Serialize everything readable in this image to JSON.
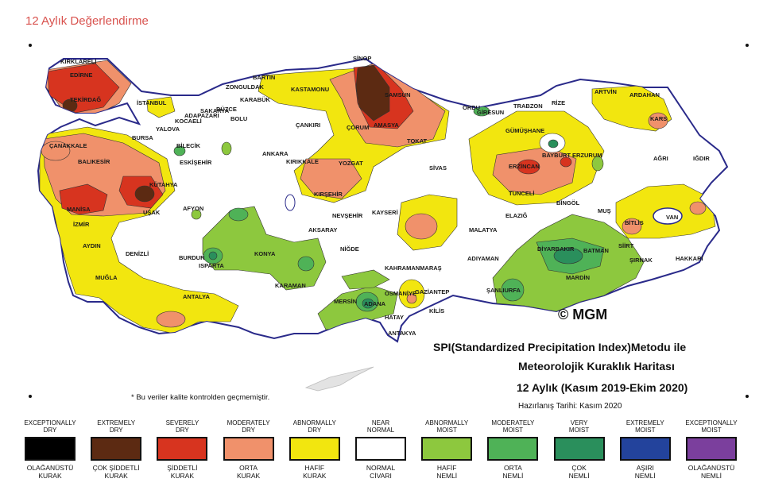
{
  "header": {
    "title": "12 Aylık Değerlendirme"
  },
  "map": {
    "copyright": "© MGM",
    "title_line1": "SPI(Standardized Precipitation Index)Metodu ile",
    "title_line2": "Meteorolojik Kuraklık Haritası",
    "title_line3": "12 Aylık (Kasım 2019-Ekim 2020)",
    "prepared": "Hazırlanış Tarihi: Kasım 2020",
    "note": "* Bu veriler kalite kontrolden geçmemiştir.",
    "cities": [
      "KIRKLARELİ",
      "EDİRNE",
      "TEKİRDAĞ",
      "İSTANBUL",
      "ÇANAKKALE",
      "BALIKESİR",
      "BURSA",
      "YALOVA",
      "KOCAELİ",
      "SAKARYA",
      "ADAPAZARI",
      "DÜZCE",
      "BOLU",
      "BİLECİK",
      "ESKİŞEHİR",
      "KÜTAHYA",
      "MANİSA",
      "İZMİR",
      "UŞAK",
      "AFYON",
      "AYDIN",
      "DENİZLİ",
      "MUĞLA",
      "BURDUR",
      "ISPARTA",
      "ANTALYA",
      "BARTIN",
      "ZONGULDAK",
      "KARABÜK",
      "KASTAMONU",
      "SİNOP",
      "SAMSUN",
      "ÇORUM",
      "AMASYA",
      "TOKAT",
      "ÇANKIRI",
      "ANKARA",
      "KIRIKKALE",
      "YOZGAT",
      "KIRŞEHİR",
      "NEVŞEHİR",
      "AKSARAY",
      "KONYA",
      "KARAMAN",
      "NİĞDE",
      "KAYSERİ",
      "SİVAS",
      "MERSİN",
      "ADANA",
      "OSMANİYE",
      "HATAY",
      "ANTAKYA",
      "KİLİS",
      "GAZİANTEP",
      "KAHRAMANMARAŞ",
      "ADIYAMAN",
      "MALATYA",
      "ŞANLIURFA",
      "ORDU",
      "GİRESUN",
      "TRABZON",
      "RİZE",
      "GÜMÜŞHANE",
      "BAYBURT",
      "ERZİNCAN",
      "TUNCELİ",
      "ELAZIĞ",
      "BİNGÖL",
      "MUŞ",
      "ERZURUM",
      "ARTVİN",
      "ARDAHAN",
      "KARS",
      "IĞDIR",
      "AĞRI",
      "BİTLİS",
      "VAN",
      "SİİRT",
      "BATMAN",
      "DİYARBAKIR",
      "MARDİN",
      "ŞIRNAK",
      "HAKKARİ"
    ]
  },
  "legend": [
    {
      "en": "EXCEPTIONALLY\nDRY",
      "tr": "OLAĞANÜSTÜ\nKURAK",
      "color": "#000000"
    },
    {
      "en": "EXTREMELY\nDRY",
      "tr": "ÇOK ŞİDDETLİ\nKURAK",
      "color": "#5c2a12"
    },
    {
      "en": "SEVERELY\nDRY",
      "tr": "ŞİDDETLİ\nKURAK",
      "color": "#d7341f"
    },
    {
      "en": "MODERATELY\nDRY",
      "tr": "ORTA\nKURAK",
      "color": "#f0916b"
    },
    {
      "en": "ABNORMALLY\nDRY",
      "tr": "HAFİF\nKURAK",
      "color": "#f2e60f"
    },
    {
      "en": "NEAR\nNORMAL",
      "tr": "NORMAL\nCİVARI",
      "color": "#ffffff"
    },
    {
      "en": "ABNORMALLY\nMOIST",
      "tr": "HAFİF\nNEMLİ",
      "color": "#8dc83e"
    },
    {
      "en": "MODERATELY\nMOIST",
      "tr": "ORTA\nNEMLİ",
      "color": "#4fb257"
    },
    {
      "en": "VERY\nMOIST",
      "tr": "ÇOK\nNEMLİ",
      "color": "#2a8f5c"
    },
    {
      "en": "EXTREMELY\nMOIST",
      "tr": "AŞIRI\nNEMLİ",
      "color": "#23439c"
    },
    {
      "en": "EXCEPTIONALLY\nMOIST",
      "tr": "OLAĞANÜSTÜ\nNEMLİ",
      "color": "#7b3f9d"
    }
  ]
}
